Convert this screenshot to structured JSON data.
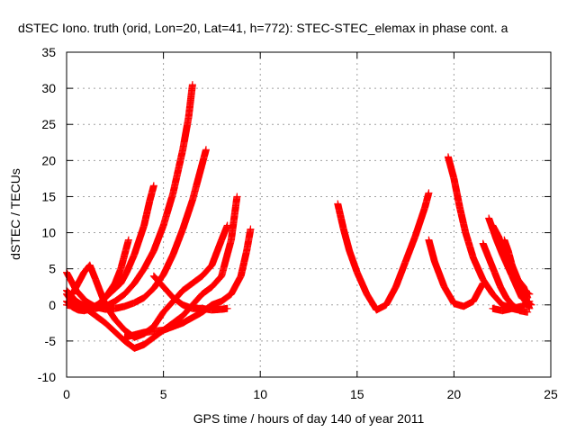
{
  "chart_data": {
    "type": "scatter",
    "title": "dSTEC Iono. truth (orid, Lon=20, Lat=41, h=772): STEC-STEC_elemax in phase cont. a",
    "xlabel": "GPS time / hours of day 140 of year 2011",
    "ylabel": "dSTEC  / TECUs",
    "xlim": [
      0,
      25
    ],
    "ylim": [
      -10,
      35
    ],
    "xticks": [
      0,
      5,
      10,
      15,
      20,
      25
    ],
    "yticks": [
      -10,
      -5,
      0,
      5,
      10,
      15,
      20,
      25,
      30,
      35
    ],
    "xtick_labels": [
      "0",
      "5",
      "10",
      "15",
      "20",
      "25"
    ],
    "ytick_labels": [
      "-10",
      "-5",
      "0",
      "5",
      "10",
      "15",
      "20",
      "25",
      "30",
      "35"
    ],
    "grid": true,
    "marker": "plus",
    "color": "#ff0000",
    "series": [
      {
        "x": [
          0.0,
          0.5,
          1.0,
          1.5,
          2.0,
          2.5,
          3.0,
          3.5,
          4.0,
          4.5,
          5.0,
          5.5,
          6.0,
          6.3,
          6.5
        ],
        "y": [
          2.0,
          0.5,
          -0.3,
          -0.5,
          -0.2,
          0.5,
          1.5,
          3.0,
          5.0,
          7.5,
          11.0,
          15.5,
          21.5,
          26.0,
          30.5
        ]
      },
      {
        "x": [
          0.0,
          0.5,
          1.0,
          1.5,
          2.0,
          2.5,
          3.0,
          3.5,
          4.0,
          4.5,
          5.0,
          5.5,
          6.0,
          6.5,
          7.0,
          7.2
        ],
        "y": [
          4.5,
          2.0,
          0.5,
          -0.3,
          -0.6,
          -0.5,
          -0.2,
          0.3,
          1.0,
          2.3,
          4.2,
          7.0,
          10.5,
          14.5,
          19.5,
          21.5
        ]
      },
      {
        "x": [
          0.0,
          0.3,
          0.6,
          0.9,
          1.2,
          1.4,
          1.7,
          2.0,
          2.4,
          2.8,
          3.1,
          3.5,
          4.0,
          4.3,
          4.5
        ],
        "y": [
          0.5,
          -0.3,
          -0.7,
          -0.8,
          -0.6,
          -0.3,
          0.2,
          1.0,
          2.0,
          3.0,
          4.5,
          7.0,
          11.0,
          14.5,
          16.5
        ]
      },
      {
        "x": [
          0.0,
          0.4,
          0.8,
          1.2,
          1.6,
          2.0,
          2.5,
          2.8,
          3.0,
          3.2
        ],
        "y": [
          1.5,
          0.0,
          -0.5,
          -0.5,
          0.0,
          1.0,
          3.0,
          5.0,
          7.0,
          9.0
        ]
      },
      {
        "x": [
          0.3,
          0.6,
          0.9,
          1.2,
          1.5,
          2.0,
          2.5,
          3.0,
          3.5,
          4.0,
          4.5,
          5.0,
          5.5,
          6.0,
          6.5,
          7.0,
          7.5,
          8.0,
          8.3
        ],
        "y": [
          1.5,
          3.0,
          4.5,
          5.5,
          3.5,
          0.0,
          -2.0,
          -3.5,
          -4.5,
          -4.0,
          -3.0,
          -1.0,
          0.5,
          2.0,
          3.0,
          4.0,
          5.5,
          9.0,
          11.0
        ]
      },
      {
        "x": [
          0.0,
          1.0,
          2.0,
          3.0,
          3.5,
          4.0,
          4.5,
          5.0,
          5.5,
          6.0,
          6.5,
          7.0,
          7.5,
          8.0,
          8.5,
          8.8
        ],
        "y": [
          0.0,
          -0.5,
          -2.5,
          -5.0,
          -6.0,
          -5.5,
          -4.5,
          -3.5,
          -2.5,
          -1.5,
          0.0,
          1.5,
          2.5,
          4.0,
          9.0,
          15.0
        ]
      },
      {
        "x": [
          3.0,
          4.0,
          5.0,
          6.0,
          7.0,
          7.5,
          8.0,
          8.5,
          9.0,
          9.3,
          9.5
        ],
        "y": [
          -4.5,
          -3.8,
          -3.5,
          -2.5,
          -1.0,
          0.0,
          0.5,
          1.5,
          4.0,
          7.5,
          10.5
        ]
      },
      {
        "x": [
          4.5,
          5.0,
          5.5,
          6.0,
          6.5,
          7.0,
          7.5,
          8.0,
          8.3
        ],
        "y": [
          4.0,
          2.5,
          1.0,
          0.0,
          -0.5,
          -0.5,
          -0.7,
          -0.6,
          -0.5
        ]
      },
      {
        "x": [
          14.0,
          14.3,
          14.6,
          15.0,
          15.5,
          16.0,
          16.5,
          17.0,
          17.5,
          18.0,
          18.5,
          18.7
        ],
        "y": [
          14.0,
          10.5,
          7.5,
          4.5,
          1.5,
          -0.7,
          0.0,
          2.5,
          6.0,
          9.5,
          13.5,
          15.5
        ]
      },
      {
        "x": [
          18.7,
          19.0,
          19.5,
          20.0,
          20.5,
          21.0,
          21.5
        ],
        "y": [
          9.0,
          6.0,
          2.5,
          0.2,
          -0.2,
          0.5,
          3.0
        ]
      },
      {
        "x": [
          19.7,
          20.0,
          20.3,
          20.6,
          21.0,
          21.5,
          22.0,
          22.5,
          23.0,
          23.5
        ],
        "y": [
          20.5,
          17.5,
          13.5,
          10.0,
          6.5,
          3.5,
          1.5,
          0.0,
          -0.5,
          -0.8
        ]
      },
      {
        "x": [
          21.8,
          22.0,
          22.2,
          22.5,
          23.0,
          23.5,
          24.0
        ],
        "y": [
          12.0,
          10.5,
          9.0,
          7.0,
          4.0,
          1.0,
          0.0
        ]
      },
      {
        "x": [
          22.0,
          22.3,
          22.5,
          22.8,
          23.0,
          23.3,
          23.6,
          23.9
        ],
        "y": [
          11.0,
          9.5,
          8.0,
          6.5,
          5.0,
          3.5,
          2.0,
          1.5
        ]
      },
      {
        "x": [
          22.5,
          22.8,
          23.0,
          23.3,
          23.6,
          23.8
        ],
        "y": [
          8.0,
          6.5,
          5.0,
          3.5,
          2.5,
          1.0
        ]
      },
      {
        "x": [
          21.5,
          21.8,
          22.1,
          22.4,
          22.7,
          23.0,
          23.4,
          23.8
        ],
        "y": [
          8.5,
          6.5,
          4.5,
          2.5,
          1.0,
          0.0,
          -0.8,
          -1.0
        ]
      },
      {
        "x": [
          22.6,
          22.8,
          23.0,
          23.3,
          23.6,
          23.9
        ],
        "y": [
          9.0,
          7.5,
          5.5,
          3.5,
          1.5,
          -0.5
        ]
      },
      {
        "x": [
          22.0,
          22.5,
          23.0,
          23.5,
          23.9
        ],
        "y": [
          -0.5,
          -0.8,
          -0.5,
          -0.2,
          0.5
        ]
      }
    ]
  }
}
